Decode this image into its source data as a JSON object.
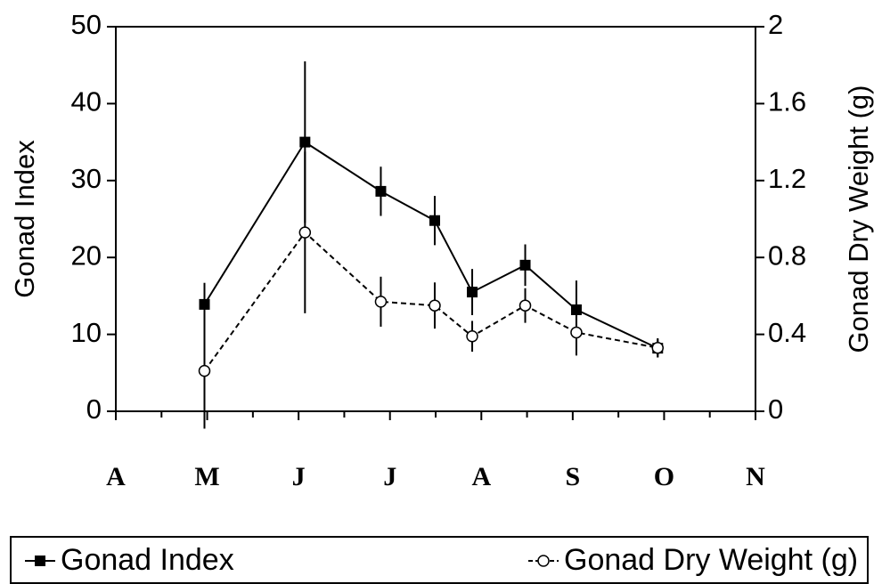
{
  "chart_data": {
    "type": "line",
    "xlim": [
      0,
      7
    ],
    "xticks": [
      {
        "value": 0,
        "label": "A"
      },
      {
        "value": 1,
        "label": "M"
      },
      {
        "value": 2,
        "label": "J"
      },
      {
        "value": 3,
        "label": "J"
      },
      {
        "value": 4,
        "label": "A"
      },
      {
        "value": 5,
        "label": "S"
      },
      {
        "value": 6,
        "label": "O"
      },
      {
        "value": 7,
        "label": "N"
      }
    ],
    "xticks_minor": [
      0.5,
      1.5,
      2.5,
      3.5,
      4.5,
      5.5,
      6.5
    ],
    "ylabel": "Gonad Index",
    "ylim": [
      0,
      50
    ],
    "yticks": [
      0,
      10,
      20,
      30,
      40,
      50
    ],
    "y2label": "Gonad Dry Weight (g)",
    "y2lim": [
      0,
      2
    ],
    "y2ticks": [
      0,
      0.4,
      0.8,
      1.2,
      1.6,
      2
    ],
    "x": [
      0.97,
      2.07,
      2.9,
      3.49,
      3.9,
      4.48,
      5.04,
      5.93
    ],
    "series": [
      {
        "name": "Gonad Index",
        "color": "#000000",
        "marker": "square",
        "line_style": "solid",
        "values": [
          13.9,
          35,
          28.6,
          24.8,
          15.5,
          19,
          13.2,
          8.2
        ],
        "errors": [
          2.8,
          10.5,
          3.2,
          3.2,
          3,
          2.7,
          3.8,
          1.2
        ]
      },
      {
        "name": "Gonad Dry Weight (g)",
        "color": "#000000",
        "marker": "circle",
        "line_style": "dashed",
        "axis": "y2",
        "values": [
          0.21,
          0.93,
          0.57,
          0.55,
          0.39,
          0.55,
          0.41,
          0.33
        ],
        "errors": [
          0.3,
          0.42,
          0.13,
          0.12,
          0.08,
          0.09,
          0.12,
          0.05
        ]
      }
    ]
  }
}
